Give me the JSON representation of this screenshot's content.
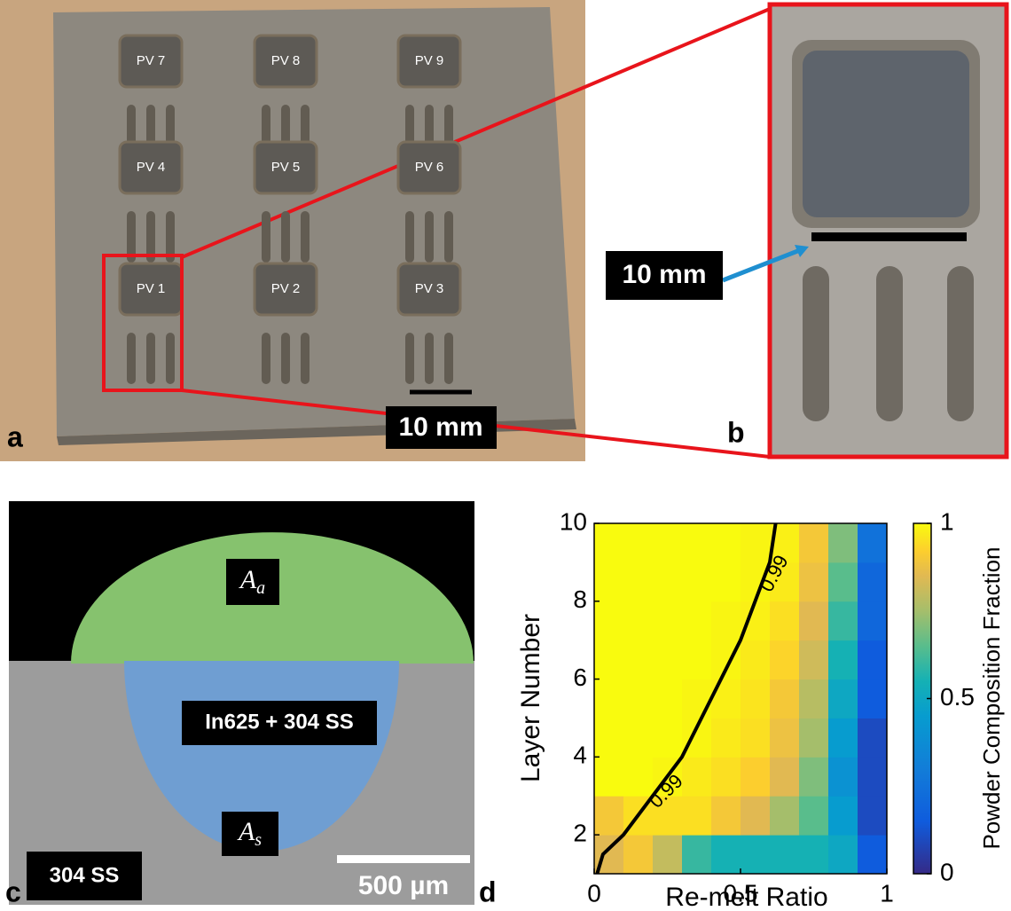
{
  "panel_a": {
    "letter": "a",
    "specimens": [
      "PV 7",
      "PV 8",
      "PV 9",
      "PV 4",
      "PV 5",
      "PV 6",
      "PV 1",
      "PV 2",
      "PV 3"
    ],
    "scale_bar": "10 mm"
  },
  "panel_b": {
    "letter": "b",
    "scale_bar": "10 mm"
  },
  "panel_c": {
    "letter": "c",
    "deposit_area": {
      "symbol": "A",
      "subscript": "a"
    },
    "substrate_area": {
      "symbol": "A",
      "subscript": "s"
    },
    "mixed_region": "In625 + 304 SS",
    "substrate": "304 SS",
    "scale_bar": "500 µm"
  },
  "chart_data": {
    "type": "heatmap",
    "letter": "d",
    "x_label": "Re-melt Ratio",
    "y_label": "Layer Number",
    "xbins": [
      0,
      0.1,
      0.2,
      0.3,
      0.4,
      0.5,
      0.6,
      0.7,
      0.8,
      0.9,
      1
    ],
    "ybins": [
      1,
      2,
      3,
      4,
      5,
      6,
      7,
      8,
      9,
      10
    ],
    "values": [
      [
        0.85,
        0.9,
        0.8,
        0.6,
        0.55,
        0.55,
        0.55,
        0.55,
        0.5,
        0.15
      ],
      [
        0.9,
        0.95,
        0.95,
        0.95,
        0.9,
        0.85,
        0.75,
        0.65,
        0.45,
        0.1
      ],
      [
        1,
        1,
        0.99,
        0.97,
        0.95,
        0.92,
        0.85,
        0.7,
        0.4,
        0.1
      ],
      [
        1,
        1,
        1,
        0.99,
        0.97,
        0.95,
        0.88,
        0.75,
        0.45,
        0.1
      ],
      [
        1,
        1,
        1,
        0.99,
        0.98,
        0.96,
        0.9,
        0.78,
        0.5,
        0.15
      ],
      [
        1,
        1,
        1,
        1,
        0.99,
        0.97,
        0.93,
        0.82,
        0.55,
        0.15
      ],
      [
        1,
        1,
        1,
        1,
        0.99,
        0.98,
        0.95,
        0.85,
        0.6,
        0.2
      ],
      [
        1,
        1,
        1,
        1,
        1,
        0.99,
        0.97,
        0.88,
        0.65,
        0.2
      ],
      [
        1,
        1,
        1,
        1,
        1,
        0.99,
        0.98,
        0.9,
        0.7,
        0.25
      ]
    ],
    "xlim": [
      0,
      1
    ],
    "ylim": [
      1,
      10
    ],
    "xticks": [
      0,
      0.5,
      1
    ],
    "yticks": [
      2,
      4,
      6,
      8,
      10
    ],
    "colormap": "parula",
    "contour": {
      "level": 0.99,
      "color": "#000000",
      "x": [
        0.01,
        0.03,
        0.1,
        0.2,
        0.3,
        0.4,
        0.5,
        0.55,
        0.6,
        0.62
      ],
      "y": [
        1,
        1.5,
        2,
        3,
        4,
        5.5,
        7,
        8,
        9,
        10
      ]
    },
    "colorbar": {
      "label": "Powder Composition Fraction",
      "lim": [
        0,
        1
      ],
      "ticks": [
        0,
        0.5,
        1
      ]
    }
  }
}
